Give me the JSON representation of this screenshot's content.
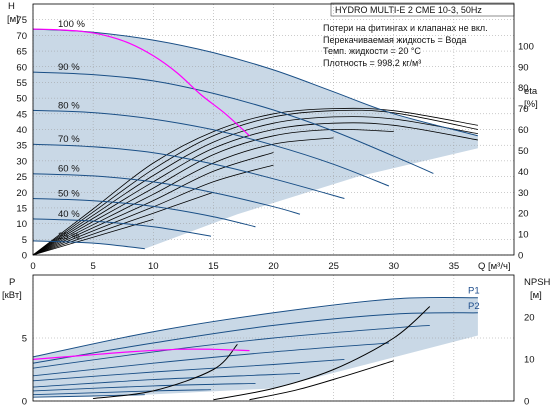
{
  "colors": {
    "region": "#c9d8e6",
    "curve": "#1a4f86",
    "highlight": "#ff00ff",
    "efficiency": "#000000",
    "grid": "#9a9a9a"
  },
  "chart_data": [
    {
      "type": "line",
      "title": "HYDRO MULTI-E 2 CME 10-3, 50Hz",
      "info": [
        "Потери на фитингах и клапанах не вкл.",
        "Перекачиваемая жидкость = Вода",
        "Темп. жидкости = 20 °C",
        "Плотность = 998.2 кг/м³"
      ],
      "ylabel": "H",
      "yunit": "[м]",
      "y2label": "eta",
      "y2unit": "[%]",
      "xlabel": "Q",
      "xunit": "[м³/ч]",
      "xlim": [
        0,
        40
      ],
      "ylim": [
        0,
        80
      ],
      "y2lim": [
        0,
        100
      ],
      "xticks": [
        0,
        5,
        10,
        15,
        20,
        25,
        30,
        35
      ],
      "yticks": [
        0,
        5,
        10,
        15,
        20,
        25,
        30,
        35,
        40,
        45,
        50,
        55,
        60,
        65,
        70,
        75
      ],
      "y2ticks": [
        0,
        10,
        20,
        30,
        40,
        50,
        60,
        70,
        80,
        90,
        100
      ],
      "grid": true,
      "series": [
        {
          "name": "100 %",
          "x": [
            0,
            5,
            10,
            15,
            20,
            25,
            30,
            37
          ],
          "y": [
            72,
            71,
            68.5,
            64.5,
            59,
            52,
            45,
            38
          ]
        },
        {
          "name": "90 %",
          "x": [
            0,
            5,
            10,
            15,
            20,
            25,
            30,
            33.3
          ],
          "y": [
            58.3,
            57.5,
            55.5,
            51.5,
            46.2,
            39.5,
            31.5,
            26
          ]
        },
        {
          "name": "80 %",
          "x": [
            0,
            5,
            10,
            15,
            20,
            25,
            29.6
          ],
          "y": [
            46.1,
            45.4,
            43.3,
            39.9,
            35,
            28.9,
            22
          ]
        },
        {
          "name": "70 %",
          "x": [
            0,
            5,
            10,
            15,
            20,
            25.9
          ],
          "y": [
            35.3,
            34.5,
            32.6,
            29,
            24.3,
            18
          ]
        },
        {
          "name": "60 %",
          "x": [
            0,
            5,
            10,
            15,
            20,
            22.2
          ],
          "y": [
            25.9,
            25.2,
            23.3,
            19.9,
            15.4,
            13
          ]
        },
        {
          "name": "50 %",
          "x": [
            0,
            5,
            10,
            15,
            18.5
          ],
          "y": [
            18,
            17.3,
            15.5,
            12.2,
            9
          ]
        },
        {
          "name": "40 %",
          "x": [
            0,
            5,
            10,
            14.8
          ],
          "y": [
            11.5,
            10.8,
            9,
            6
          ]
        },
        {
          "name": "25 %",
          "x": [
            0,
            5,
            9.3
          ],
          "y": [
            4.5,
            3.8,
            2
          ]
        }
      ],
      "highlight_curve": {
        "x": [
          0,
          2,
          4,
          6,
          8,
          10,
          12,
          14,
          16,
          18
        ],
        "y": [
          72,
          71.8,
          71.3,
          70,
          67.5,
          63.5,
          58,
          51,
          45,
          38
        ]
      },
      "efficiency_curves": [
        {
          "x": [
            0,
            5,
            10,
            15,
            20,
            25,
            30,
            37
          ],
          "y": [
            0,
            22,
            44,
            59,
            67.5,
            70,
            69,
            62
          ]
        },
        {
          "x": [
            0,
            5,
            10,
            15,
            20,
            25,
            30,
            37
          ],
          "y": [
            0,
            20.5,
            41,
            57,
            66,
            69,
            68,
            60
          ]
        },
        {
          "x": [
            0,
            5,
            10,
            15,
            20,
            25,
            30,
            37
          ],
          "y": [
            0,
            19,
            38,
            54,
            63,
            66,
            65,
            58
          ]
        },
        {
          "x": [
            0,
            5,
            10,
            15,
            20,
            25,
            30,
            37
          ],
          "y": [
            0,
            17.5,
            35,
            51,
            60,
            63,
            62,
            55
          ]
        },
        {
          "x": [
            0,
            5,
            10,
            15,
            20,
            25,
            30
          ],
          "y": [
            0,
            16,
            32,
            48,
            57,
            60,
            59
          ]
        },
        {
          "x": [
            0,
            5,
            10,
            15,
            20,
            25
          ],
          "y": [
            0,
            14.5,
            29,
            44,
            53,
            56
          ]
        },
        {
          "x": [
            0,
            5,
            10,
            15,
            20
          ],
          "y": [
            0,
            13,
            26,
            40,
            49
          ]
        },
        {
          "x": [
            0,
            5,
            10,
            15,
            20
          ],
          "y": [
            0,
            11.5,
            23,
            35,
            43
          ]
        },
        {
          "x": [
            0,
            5,
            10,
            15
          ],
          "y": [
            0,
            10,
            20,
            30
          ]
        },
        {
          "x": [
            0,
            5,
            10
          ],
          "y": [
            0,
            8.5,
            17
          ]
        }
      ]
    },
    {
      "type": "line",
      "ylabel": "P",
      "yunit": "[кВт]",
      "y2label": "NPSH",
      "y2unit": "[м]",
      "xlim": [
        0,
        40
      ],
      "ylim": [
        0,
        10
      ],
      "y2lim": [
        0,
        30
      ],
      "yticks": [
        0,
        5
      ],
      "y2ticks": [
        0,
        10,
        20
      ],
      "grid": true,
      "series": [
        {
          "name": "P1",
          "x": [
            0,
            10,
            20,
            30,
            37
          ],
          "y": [
            3.5,
            5.5,
            7,
            8.1,
            8.2
          ]
        },
        {
          "name": "P2",
          "x": [
            0,
            10,
            20,
            30,
            37
          ],
          "y": [
            3.0,
            4.6,
            6,
            6.9,
            7
          ]
        }
      ],
      "power_curves": [
        {
          "x": [
            0,
            10,
            20,
            30,
            33
          ],
          "y": [
            2.6,
            3.9,
            5.0,
            5.8,
            6.0
          ]
        },
        {
          "x": [
            0,
            10,
            20,
            29.6
          ],
          "y": [
            2.0,
            3.0,
            3.9,
            4.6
          ]
        },
        {
          "x": [
            0,
            10,
            20,
            25.9
          ],
          "y": [
            1.6,
            2.3,
            2.9,
            3.3
          ]
        },
        {
          "x": [
            0,
            10,
            20,
            22.2
          ],
          "y": [
            1.1,
            1.7,
            2.1,
            2.2
          ]
        },
        {
          "x": [
            0,
            10,
            18.5
          ],
          "y": [
            0.8,
            1.2,
            1.4
          ]
        },
        {
          "x": [
            0,
            10,
            14.8
          ],
          "y": [
            0.5,
            0.8,
            0.9
          ]
        },
        {
          "x": [
            0,
            5,
            9.3
          ],
          "y": [
            0.3,
            0.4,
            0.5
          ]
        }
      ],
      "highlight_curve": {
        "x": [
          0,
          4,
          8,
          12,
          15,
          18
        ],
        "y": [
          3.3,
          3.6,
          3.9,
          4.1,
          4.1,
          4.0
        ]
      },
      "npsh_curves": [
        {
          "x": [
            5,
            10,
            15,
            17
          ],
          "y": [
            0.2,
            0.8,
            2.5,
            4.5
          ]
        },
        {
          "x": [
            15,
            20,
            25,
            30,
            33
          ],
          "y": [
            0.1,
            1.0,
            2.5,
            5.0,
            7.5
          ]
        },
        {
          "x": [
            18,
            22,
            26,
            30
          ],
          "y": [
            0.1,
            0.9,
            2.0,
            3.2
          ]
        }
      ]
    }
  ]
}
